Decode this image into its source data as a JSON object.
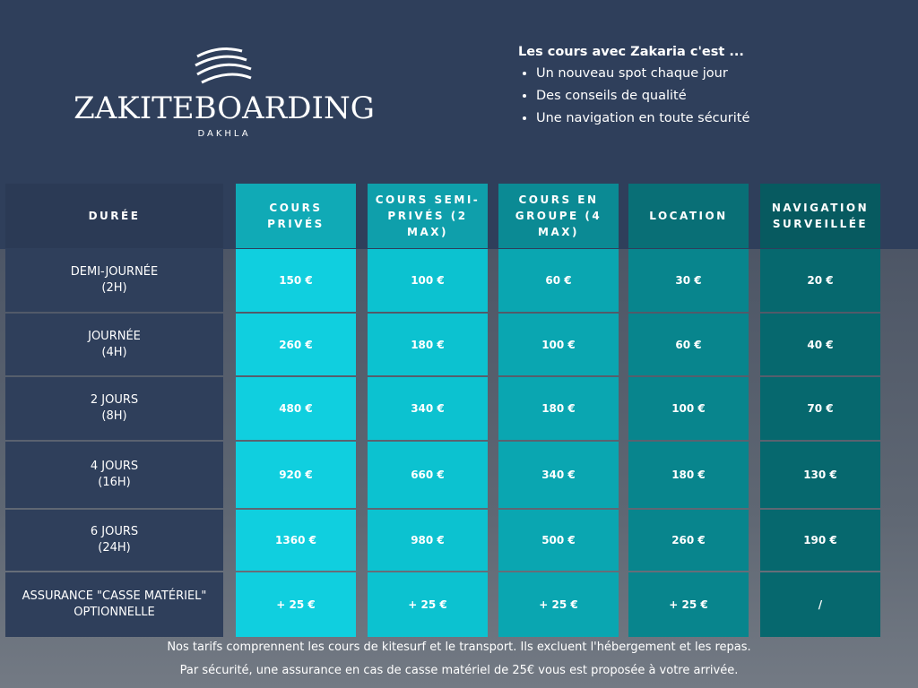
{
  "header": {
    "brand": "ZAKITEBOARDING",
    "location": "DAKHLA",
    "intro_title": "Les cours avec Zakaria c'est ...",
    "bullets": [
      "Un nouveau spot chaque jour",
      "Des conseils de qualité",
      "Une navigation en toute sécurité"
    ]
  },
  "table": {
    "corner": "DURÉE",
    "columns": [
      "COURS PRIVÉS",
      "COURS SEMI-PRIVÉS (2 MAX)",
      "COURS EN GROUPE (4 MAX)",
      "LOCATION",
      "NAVIGATION SURVEILLÉE"
    ],
    "rows": [
      {
        "label": "DEMI-JOURNÉE\n(2H)",
        "cells": [
          "150 €",
          "100 €",
          "60 €",
          "30 €",
          "20 €"
        ]
      },
      {
        "label": "JOURNÉE\n(4H)",
        "cells": [
          "260 €",
          "180 €",
          "100 €",
          "60 €",
          "40 €"
        ]
      },
      {
        "label": "2 JOURS\n(8H)",
        "cells": [
          "480 €",
          "340 €",
          "180 €",
          "100 €",
          "70 €"
        ]
      },
      {
        "label": "4 JOURS\n(16H)",
        "cells": [
          "920 €",
          "660 €",
          "340 €",
          "180 €",
          "130 €"
        ]
      },
      {
        "label": "6 JOURS\n(24H)",
        "cells": [
          "1360 €",
          "980 €",
          "500 €",
          "260 €",
          "190 €"
        ]
      },
      {
        "label": "ASSURANCE \"CASSE MATÉRIEL\"\nOPTIONNELLE",
        "cells": [
          "+ 25 €",
          "+ 25 €",
          "+ 25 €",
          "+ 25 €",
          "/"
        ]
      }
    ]
  },
  "footer": [
    "Nos tarifs comprennent les cours de kitesurf et le transport. Ils excluent l'hébergement et les repas.",
    "Par sécurité, une assurance en cas de casse matériel de 25€ vous est proposée à votre arrivée."
  ]
}
